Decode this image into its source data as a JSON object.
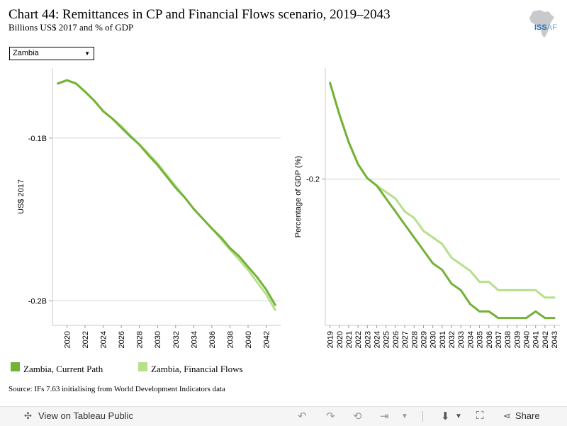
{
  "title": "Chart 44: Remittances in CP and Financial Flows scenario, 2019–2043",
  "subtitle": "Billions US$ 2017 and % of GDP",
  "logo": {
    "text_bold": "ISS",
    "text_thin": "AF"
  },
  "country_select": {
    "selected": "Zambia"
  },
  "source": "Source: IFs 7.63 initialising from World Development Indicators data",
  "footer": {
    "view_label": "View on Tableau Public",
    "share_label": "Share"
  },
  "colors": {
    "current_path": "#73b236",
    "financial_flows": "#b6e08a"
  },
  "chart_data": [
    {
      "type": "line",
      "ylabel": "US$ 2017",
      "x_ticks": [
        "2020",
        "2022",
        "2024",
        "2026",
        "2028",
        "2030",
        "2032",
        "2034",
        "2036",
        "2038",
        "2040",
        "2042"
      ],
      "y_ticks": [
        {
          "value": -0.1,
          "label": "-0.1B"
        },
        {
          "value": -0.2,
          "label": "-0.2B"
        }
      ],
      "ylim": [
        -0.215,
        -0.057
      ],
      "xlim": [
        2018.4,
        2043.6
      ],
      "grid": true,
      "x": [
        2019,
        2020,
        2021,
        2022,
        2023,
        2024,
        2025,
        2026,
        2027,
        2028,
        2029,
        2030,
        2031,
        2032,
        2033,
        2034,
        2035,
        2036,
        2037,
        2038,
        2039,
        2040,
        2041,
        2042,
        2043
      ],
      "series": [
        {
          "name": "Zambia, Current Path",
          "color": "#73b236",
          "values": [
            -0.0665,
            -0.0645,
            -0.0665,
            -0.0715,
            -0.077,
            -0.0835,
            -0.088,
            -0.0935,
            -0.099,
            -0.104,
            -0.1105,
            -0.1165,
            -0.1235,
            -0.1305,
            -0.1365,
            -0.1435,
            -0.1495,
            -0.1555,
            -0.161,
            -0.1675,
            -0.1725,
            -0.179,
            -0.1855,
            -0.193,
            -0.2025
          ]
        },
        {
          "name": "Zambia, Financial Flows",
          "color": "#b6e08a",
          "values": [
            -0.0665,
            -0.0645,
            -0.0665,
            -0.0715,
            -0.077,
            -0.0835,
            -0.088,
            -0.0925,
            -0.0985,
            -0.104,
            -0.1095,
            -0.1155,
            -0.1225,
            -0.1295,
            -0.1365,
            -0.1435,
            -0.1495,
            -0.1555,
            -0.162,
            -0.1685,
            -0.1745,
            -0.181,
            -0.1885,
            -0.196,
            -0.2055
          ]
        }
      ]
    },
    {
      "type": "line",
      "ylabel": "Percentage of GDP (%)",
      "x_ticks": [
        "2019",
        "2020",
        "2021",
        "2022",
        "2023",
        "2024",
        "2025",
        "2026",
        "2027",
        "2028",
        "2029",
        "2030",
        "2031",
        "2032",
        "2033",
        "2034",
        "2035",
        "2036",
        "2037",
        "2038",
        "2039",
        "2040",
        "2041",
        "2042",
        "2043"
      ],
      "y_ticks": [
        {
          "value": -0.2,
          "label": "-0.2"
        }
      ],
      "ylim": [
        -0.279,
        -0.14
      ],
      "xlim": [
        2018.5,
        2043.6
      ],
      "grid": true,
      "x": [
        2019,
        2020,
        2021,
        2022,
        2023,
        2024,
        2025,
        2026,
        2027,
        2028,
        2029,
        2030,
        2031,
        2032,
        2033,
        2034,
        2035,
        2036,
        2037,
        2038,
        2039,
        2040,
        2041,
        2042,
        2043
      ],
      "series": [
        {
          "name": "Zambia, Current Path",
          "color": "#73b236",
          "values": [
            -0.148,
            -0.165,
            -0.18,
            -0.192,
            -0.1995,
            -0.2035,
            -0.2105,
            -0.2175,
            -0.2245,
            -0.2315,
            -0.2385,
            -0.2455,
            -0.249,
            -0.2565,
            -0.26,
            -0.2675,
            -0.2715,
            -0.2715,
            -0.275,
            -0.275,
            -0.275,
            -0.275,
            -0.2715,
            -0.275,
            -0.275
          ]
        },
        {
          "name": "Zambia, Financial Flows",
          "color": "#b6e08a",
          "values": [
            -0.148,
            -0.165,
            -0.18,
            -0.192,
            -0.1995,
            -0.2035,
            -0.207,
            -0.2105,
            -0.2175,
            -0.221,
            -0.228,
            -0.2315,
            -0.235,
            -0.2425,
            -0.246,
            -0.2495,
            -0.2555,
            -0.2555,
            -0.26,
            -0.26,
            -0.26,
            -0.26,
            -0.26,
            -0.264,
            -0.264
          ]
        }
      ]
    }
  ]
}
